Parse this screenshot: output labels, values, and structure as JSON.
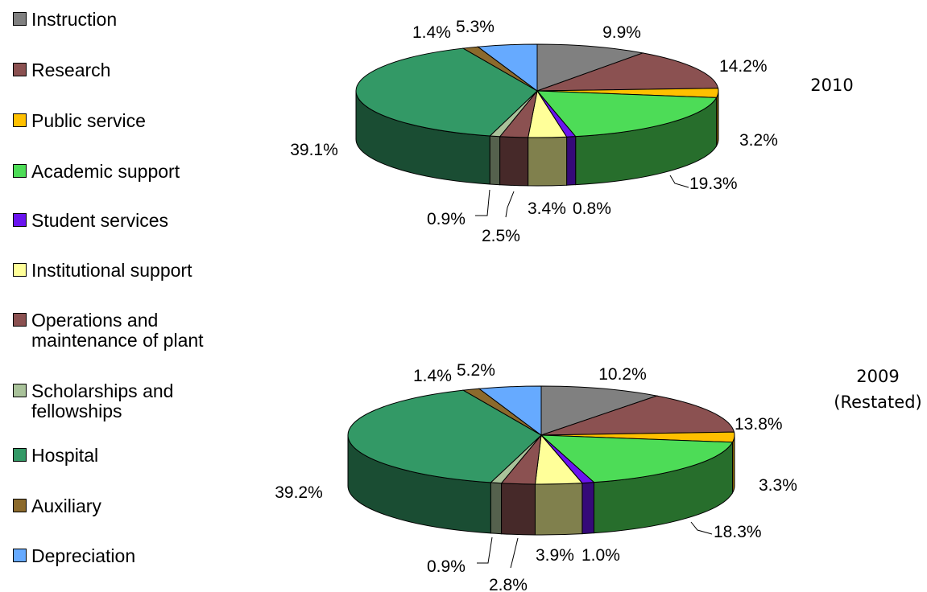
{
  "legend": [
    {
      "label": "Instruction",
      "color": "#808080"
    },
    {
      "label": "Research",
      "color": "#8b5151"
    },
    {
      "label": "Public service",
      "color": "#ffc000"
    },
    {
      "label": "Academic support",
      "color": "#4ddc57"
    },
    {
      "label": "Student services",
      "color": "#6a14ef"
    },
    {
      "label": "Institutional support",
      "color": "#ffff99"
    },
    {
      "label": "Operations and\nmaintenance of plant",
      "color": "#8b5151"
    },
    {
      "label": "Scholarships and\nfellowships",
      "color": "#a9c29a"
    },
    {
      "label": "Hospital",
      "color": "#339966"
    },
    {
      "label": "Auxiliary",
      "color": "#8c6a2c"
    },
    {
      "label": "Depreciation",
      "color": "#66aaff"
    }
  ],
  "chart_data": [
    {
      "type": "pie",
      "title": "2010",
      "categories": [
        "Instruction",
        "Research",
        "Public service",
        "Academic support",
        "Student services",
        "Institutional support",
        "Operations and maintenance of plant",
        "Scholarships and fellowships",
        "Hospital",
        "Auxiliary",
        "Depreciation"
      ],
      "values": [
        9.9,
        14.2,
        3.2,
        19.3,
        0.8,
        3.4,
        2.5,
        0.9,
        39.1,
        1.4,
        5.3
      ],
      "labels": [
        "9.9%",
        "14.2%",
        "3.2%",
        "19.3%",
        "0.8%",
        "3.4%",
        "2.5%",
        "0.9%",
        "39.1%",
        "1.4%",
        "5.3%"
      ]
    },
    {
      "type": "pie",
      "title": "2009\n(Restated)",
      "categories": [
        "Instruction",
        "Research",
        "Public service",
        "Academic support",
        "Student services",
        "Institutional support",
        "Operations and maintenance of plant",
        "Scholarships and fellowships",
        "Hospital",
        "Auxiliary",
        "Depreciation"
      ],
      "values": [
        10.2,
        13.8,
        3.3,
        18.3,
        1.0,
        3.9,
        2.8,
        0.9,
        39.2,
        1.4,
        5.2
      ],
      "labels": [
        "10.2%",
        "13.8%",
        "3.3%",
        "18.3%",
        "1.0%",
        "3.9%",
        "2.8%",
        "0.9%",
        "39.2%",
        "1.4%",
        "5.2%"
      ]
    }
  ]
}
